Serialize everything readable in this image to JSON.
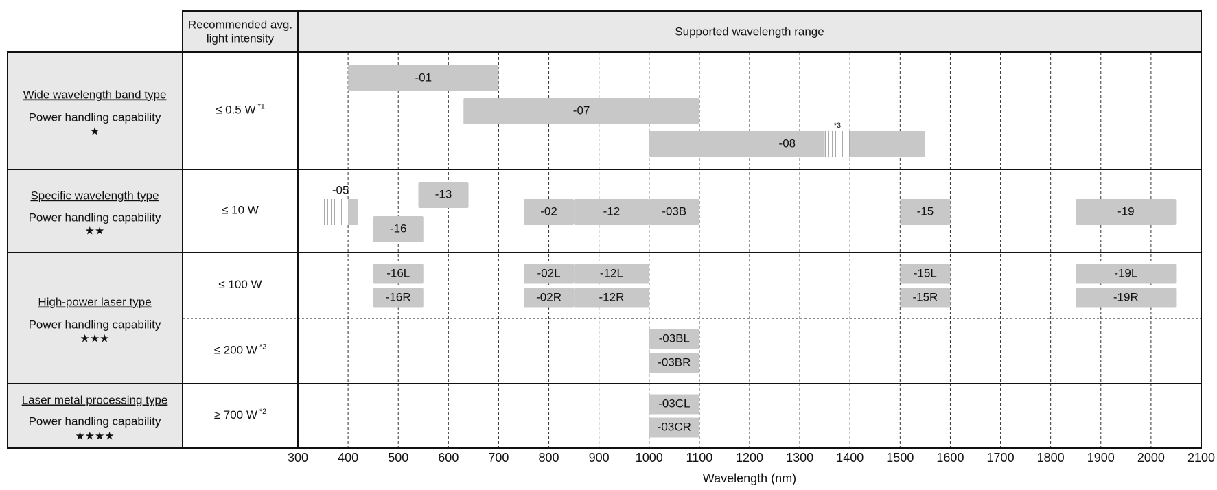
{
  "chart_data": {
    "type": "range",
    "title": "Supported wavelength range",
    "intensity_header": [
      "Recommended avg.",
      "light intensity"
    ],
    "xlabel": "Wavelength (nm)",
    "xlim": [
      300,
      2100
    ],
    "xticks": [
      300,
      400,
      500,
      600,
      700,
      800,
      900,
      1000,
      1100,
      1200,
      1300,
      1400,
      1500,
      1600,
      1700,
      1800,
      1900,
      2000,
      2100
    ],
    "grid": true,
    "color": "#c8c8c8",
    "groups": [
      {
        "name": "Wide wavelength band type",
        "capability": "Power handling capability",
        "stars": "★",
        "rows": [
          {
            "intensity": "≤ 0.5 W",
            "note": "*1",
            "bars": [
              {
                "label": "-01",
                "start": 400,
                "end": 700
              },
              {
                "label": "-07",
                "start": 630,
                "end": 1100
              },
              {
                "label": "-08",
                "start": 1000,
                "end": 1550,
                "hatch": [
                  1350,
                  1400
                ],
                "note": "*3"
              }
            ]
          }
        ]
      },
      {
        "name": "Specific wavelength type",
        "capability": "Power handling capability",
        "stars": "★★",
        "rows": [
          {
            "intensity": "≤ 10 W",
            "bars": [
              {
                "label": "-05",
                "start": 350,
                "end": 420,
                "hatch": [
                  350,
                  400
                ]
              },
              {
                "label": "-16",
                "start": 450,
                "end": 550
              },
              {
                "label": "-13",
                "start": 540,
                "end": 640
              },
              {
                "label": "-02",
                "start": 750,
                "end": 850
              },
              {
                "label": "-12",
                "start": 850,
                "end": 1000
              },
              {
                "label": "-03B",
                "start": 1000,
                "end": 1100
              },
              {
                "label": "-15",
                "start": 1500,
                "end": 1600
              },
              {
                "label": "-19",
                "start": 1850,
                "end": 2050
              }
            ]
          }
        ]
      },
      {
        "name": "High-power laser type",
        "capability": "Power handling capability",
        "stars": "★★★",
        "rows": [
          {
            "intensity": "≤ 100 W",
            "bars": [
              {
                "label": "-16L",
                "start": 450,
                "end": 550
              },
              {
                "label": "-16R",
                "start": 450,
                "end": 550
              },
              {
                "label": "-02L",
                "start": 750,
                "end": 850
              },
              {
                "label": "-02R",
                "start": 750,
                "end": 850
              },
              {
                "label": "-12L",
                "start": 850,
                "end": 1000
              },
              {
                "label": "-12R",
                "start": 850,
                "end": 1000
              },
              {
                "label": "-15L",
                "start": 1500,
                "end": 1600
              },
              {
                "label": "-15R",
                "start": 1500,
                "end": 1600
              },
              {
                "label": "-19L",
                "start": 1850,
                "end": 2050
              },
              {
                "label": "-19R",
                "start": 1850,
                "end": 2050
              }
            ]
          },
          {
            "intensity": "≤ 200 W",
            "note": "*2",
            "bars": [
              {
                "label": "-03BL",
                "start": 1000,
                "end": 1100
              },
              {
                "label": "-03BR",
                "start": 1000,
                "end": 1100
              }
            ]
          }
        ]
      },
      {
        "name": "Laser metal processing type",
        "capability": "Power handling capability",
        "stars": "★★★★",
        "rows": [
          {
            "intensity": "≥ 700 W",
            "note": "*2",
            "bars": [
              {
                "label": "-03CL",
                "start": 1000,
                "end": 1100
              },
              {
                "label": "-03CR",
                "start": 1000,
                "end": 1100
              }
            ]
          }
        ]
      }
    ]
  }
}
